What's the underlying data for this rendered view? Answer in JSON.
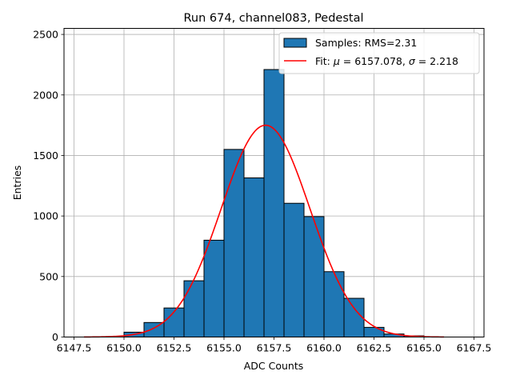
{
  "chart_data": {
    "type": "bar",
    "title": "Run 674, channel083, Pedestal",
    "xlabel": "ADC Counts",
    "ylabel": "Entries",
    "xlim": [
      6147.0,
      6168.0
    ],
    "ylim": [
      0,
      2550
    ],
    "x_ticks": [
      6147.5,
      6150.0,
      6152.5,
      6155.0,
      6157.5,
      6160.0,
      6162.5,
      6165.0,
      6167.5
    ],
    "x_tick_labels": [
      "6147.5",
      "6150.0",
      "6152.5",
      "6155.0",
      "6157.5",
      "6160.0",
      "6162.5",
      "6165.0",
      "6167.5"
    ],
    "y_ticks": [
      0,
      500,
      1000,
      1500,
      2000,
      2500
    ],
    "y_tick_labels": [
      "0",
      "500",
      "1000",
      "1500",
      "2000",
      "2500"
    ],
    "grid": true,
    "legend_position": "top-right",
    "histogram": {
      "name": "Samples: RMS=2.31",
      "color": "#1f77b4",
      "edge_color": "#000000",
      "bin_edges": [
        6150.0,
        6151.0,
        6152.0,
        6153.0,
        6154.0,
        6155.0,
        6156.0,
        6157.0,
        6158.0,
        6159.0,
        6160.0,
        6161.0,
        6162.0,
        6163.0,
        6164.0,
        6165.0
      ],
      "counts": [
        40,
        120,
        240,
        465,
        800,
        1550,
        1315,
        2210,
        1105,
        995,
        540,
        320,
        80,
        25,
        10
      ]
    },
    "fit": {
      "name": "Fit: μ = 6157.078, σ = 2.218",
      "label_prefix": "Fit: ",
      "mu_symbol": "μ",
      "mu_text": " = 6157.078, ",
      "sigma_symbol": "σ",
      "sigma_text": " = 2.218",
      "color": "#ff0000",
      "mu": 6157.078,
      "sigma": 2.218,
      "amplitude": 1750,
      "x_range": [
        6148.0,
        6166.0
      ]
    },
    "colors": {
      "background": "#ffffff",
      "grid": "#b0b0b0",
      "axes": "#000000"
    }
  }
}
